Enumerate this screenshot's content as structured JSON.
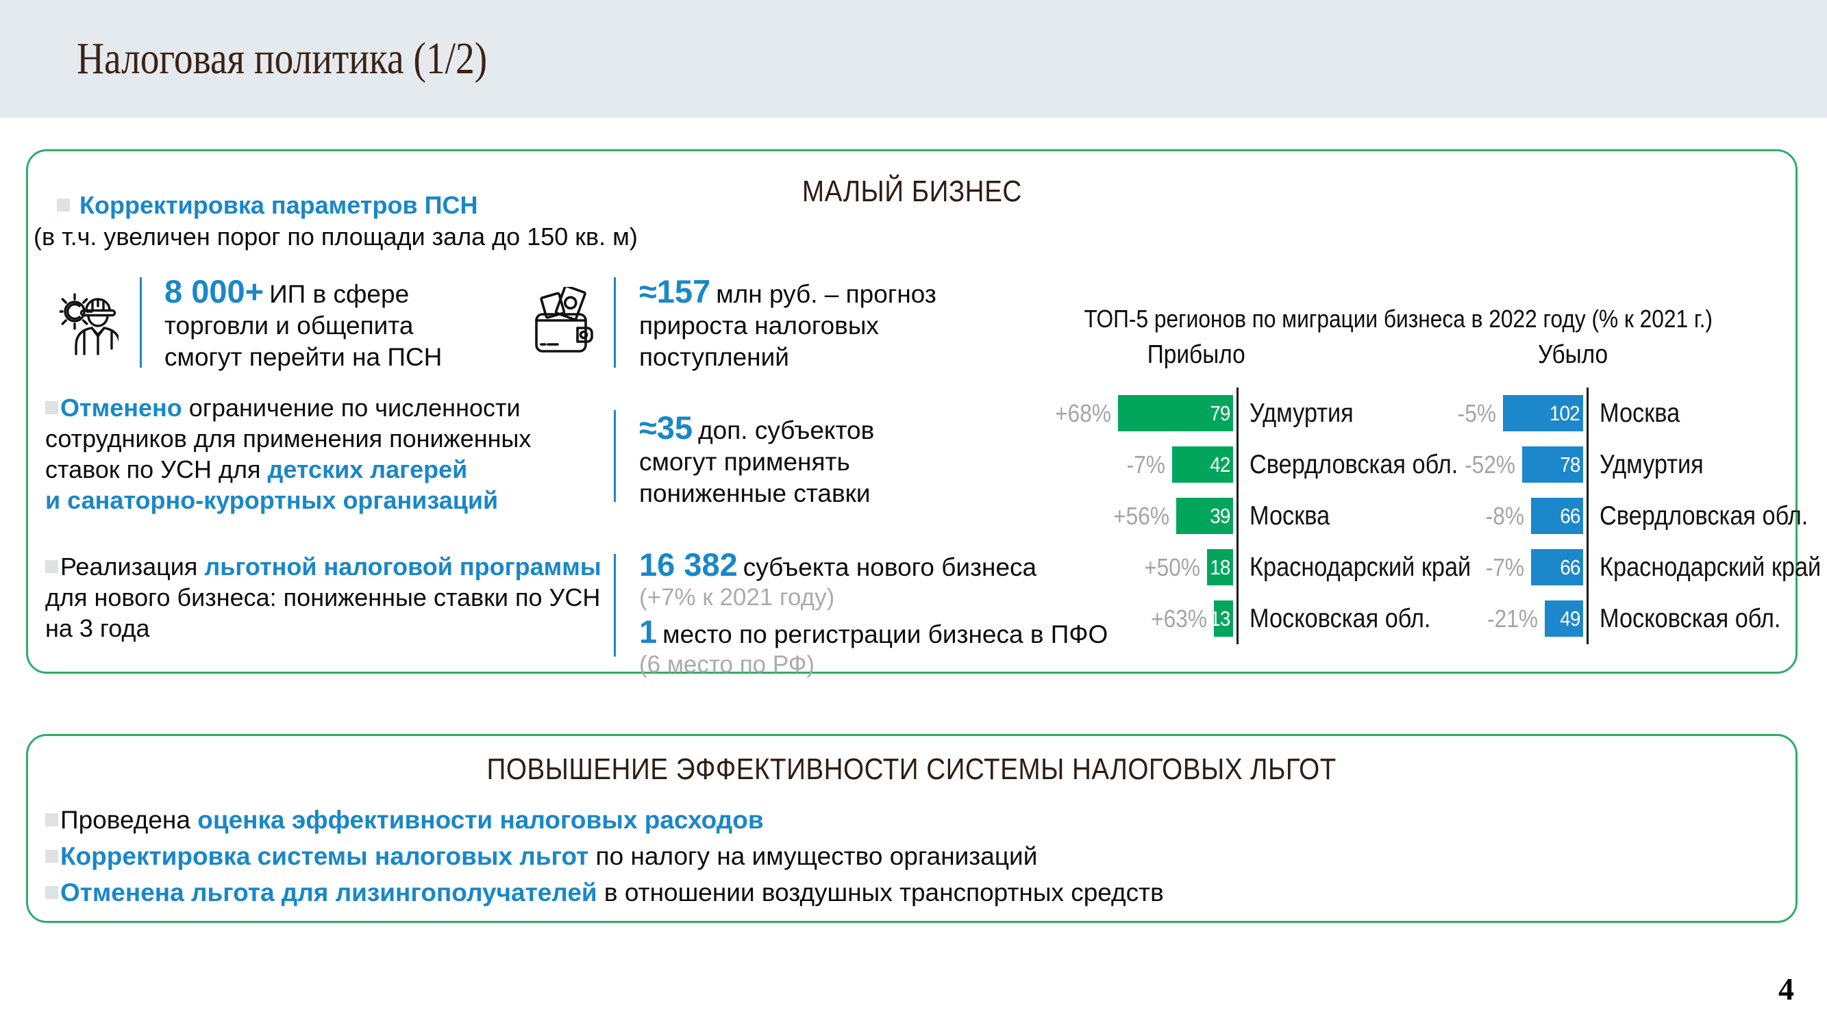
{
  "slide": {
    "title": "Налоговая политика (1/2)",
    "page_number": "4"
  },
  "colors": {
    "accent_blue": "#1987c8",
    "panel_border_green": "#2fad68",
    "header_band": "#e5eaee",
    "heading_brown": "#2e1d12",
    "gray_label": "#a5a5a5",
    "green_bar": "#01a65c",
    "blue_bar": "#1c87cb"
  },
  "small_business": {
    "heading": "МАЛЫЙ БИЗНЕС",
    "bullets": [
      {
        "lines": [
          [
            {
              "t": "Корректировка параметров ПСН",
              "hl": true
            }
          ],
          [
            {
              "t": "(в т.ч. увеличен порог по площади зала до 150 кв. м)"
            }
          ]
        ]
      },
      {
        "lines": [
          [
            {
              "t": "Отменено",
              "hl": true
            },
            {
              "t": " ограничение по численности"
            }
          ],
          [
            {
              "t": "сотрудников для применения пониженных"
            }
          ],
          [
            {
              "t": "ставок по УСН для "
            },
            {
              "t": "детских лагерей",
              "hl": true
            }
          ],
          [
            {
              "t": "и санаторно-курортных организаций",
              "hl": true
            }
          ]
        ]
      },
      {
        "lines": [
          [
            {
              "t": "Реализация "
            },
            {
              "t": "льготной налоговой программы",
              "hl": true
            }
          ],
          [
            {
              "t": "для нового бизнеса: пониженные ставки по УСН"
            }
          ],
          [
            {
              "t": "на 3 года"
            }
          ]
        ]
      }
    ],
    "stats": [
      {
        "icon": "worker-icon",
        "value": "8 000+",
        "lines": [
          "ИП в сфере",
          "торговли и общепита",
          "смогут перейти на ПСН"
        ]
      },
      {
        "icon": "wallet-icon",
        "value": "≈157",
        "lines": [
          "млн руб. – прогноз",
          "прироста налоговых",
          "поступлений"
        ]
      },
      {
        "value": "≈35",
        "lines": [
          "доп. субъектов",
          "смогут применять",
          "пониженные ставки"
        ]
      },
      {
        "value": "16 382",
        "text": "субъекта нового бизнеса",
        "note": "(+7% к 2021 году)"
      },
      {
        "value": "1",
        "text": "место по регистрации бизнеса в ПФО",
        "note": "(6 место по РФ)"
      }
    ]
  },
  "chart_data": {
    "type": "bar",
    "title": "ТОП-5 регионов по миграции бизнеса в 2022 году (% к 2021 г.)",
    "orientation": "horizontal",
    "value_labels_inside_bars": true,
    "charts": [
      {
        "name": "Прибыло",
        "color": "#01a65c",
        "rows": [
          {
            "pct": "+68%",
            "value": 79,
            "region": "Удмуртия"
          },
          {
            "pct": "-7%",
            "value": 42,
            "region": "Свердловская обл."
          },
          {
            "pct": "+56%",
            "value": 39,
            "region": "Москва"
          },
          {
            "pct": "+50%",
            "value": 18,
            "region": "Краснодарский край"
          },
          {
            "pct": "+63%",
            "value": 13,
            "region": "Московская обл."
          }
        ]
      },
      {
        "name": "Убыло",
        "color": "#1c87cb",
        "rows": [
          {
            "pct": "-5%",
            "value": 102,
            "region": "Москва"
          },
          {
            "pct": "-52%",
            "value": 78,
            "region": "Удмуртия"
          },
          {
            "pct": "-8%",
            "value": 66,
            "region": "Свердловская обл."
          },
          {
            "pct": "-7%",
            "value": 66,
            "region": "Краснодарский край"
          },
          {
            "pct": "-21%",
            "value": 49,
            "region": "Московская обл."
          }
        ]
      }
    ]
  },
  "efficiency": {
    "heading": "ПОВЫШЕНИЕ ЭФФЕКТИВНОСТИ СИСТЕМЫ НАЛОГОВЫХ ЛЬГОТ",
    "bullets": [
      [
        {
          "t": "Проведена "
        },
        {
          "t": "оценка эффективности налоговых расходов",
          "hl": true
        }
      ],
      [
        {
          "t": "Корректировка системы налоговых льгот",
          "hl": true
        },
        {
          "t": " по налогу на имущество организаций"
        }
      ],
      [
        {
          "t": "Отменена льгота для лизингополучателей",
          "hl": true
        },
        {
          "t": " в отношении воздушных транспортных средств"
        }
      ]
    ]
  }
}
